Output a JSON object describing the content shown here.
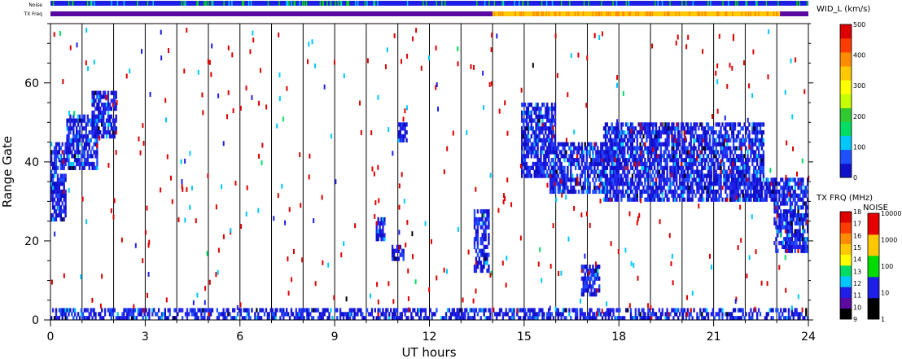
{
  "chart_data": {
    "type": "heatmap",
    "title": "",
    "xlabel": "UT hours",
    "ylabel": "Range Gate",
    "xlim": [
      0,
      24
    ],
    "ylim": [
      0,
      75
    ],
    "x_ticks": [
      "0",
      "3",
      "6",
      "9",
      "12",
      "15",
      "18",
      "21",
      "24"
    ],
    "y_ticks": [
      "0",
      "20",
      "40",
      "60"
    ],
    "hour_gridlines": true,
    "top_strips": {
      "noise_label": "Noise",
      "txfreq_label": "TX Freq",
      "txfreq_segments": [
        {
          "start": 0,
          "end": 14,
          "color": "#5a0aa0"
        },
        {
          "start": 14,
          "end": 23.1,
          "color": "#ffc800"
        },
        {
          "start": 23.1,
          "end": 24,
          "color": "#5a0aa0"
        }
      ]
    },
    "echo_regions": [
      {
        "x": [
          0.0,
          0.5
        ],
        "gate": [
          25,
          45
        ],
        "level": "low"
      },
      {
        "x": [
          0.5,
          1.5
        ],
        "gate": [
          38,
          52
        ],
        "level": "low"
      },
      {
        "x": [
          1.3,
          2.1
        ],
        "gate": [
          46,
          58
        ],
        "level": "low"
      },
      {
        "x": [
          10.3,
          10.6
        ],
        "gate": [
          20,
          26
        ],
        "level": "low"
      },
      {
        "x": [
          10.8,
          11.2
        ],
        "gate": [
          15,
          19
        ],
        "level": "low"
      },
      {
        "x": [
          11.0,
          11.3
        ],
        "gate": [
          45,
          50
        ],
        "level": "low"
      },
      {
        "x": [
          13.4,
          13.9
        ],
        "gate": [
          12,
          28
        ],
        "level": "low"
      },
      {
        "x": [
          14.9,
          16.0
        ],
        "gate": [
          36,
          55
        ],
        "level": "low"
      },
      {
        "x": [
          15.8,
          18.0
        ],
        "gate": [
          32,
          45
        ],
        "level": "low"
      },
      {
        "x": [
          17.5,
          22.6
        ],
        "gate": [
          30,
          50
        ],
        "level": "low"
      },
      {
        "x": [
          21.5,
          23.0
        ],
        "gate": [
          30,
          36
        ],
        "level": "low"
      },
      {
        "x": [
          22.9,
          24.0
        ],
        "gate": [
          17,
          36
        ],
        "level": "low"
      },
      {
        "x": [
          16.8,
          17.4
        ],
        "gate": [
          6,
          14
        ],
        "level": "low"
      },
      {
        "x": [
          0.0,
          24.0
        ],
        "gate": [
          0,
          3
        ],
        "level": "low"
      }
    ],
    "colorbars": [
      {
        "title": "WID_L (km/s)",
        "ticks": [
          "0",
          "100",
          "200",
          "300",
          "400",
          "500"
        ],
        "range": [
          0,
          500
        ],
        "colors": [
          "#1010c8",
          "#1e50ff",
          "#00c8ff",
          "#00dc64",
          "#32c832",
          "#c8ff00",
          "#ffff00",
          "#ffc800",
          "#ff8c00",
          "#ff3c00",
          "#dc0000"
        ]
      },
      {
        "title": "TX FRQ (MHz)",
        "ticks": [
          "9",
          "10",
          "11",
          "12",
          "13",
          "14",
          "15",
          "16",
          "17",
          "18"
        ],
        "range": [
          9,
          18
        ],
        "colors": [
          "#000000",
          "#5a0aa0",
          "#1e1ee6",
          "#00c8ff",
          "#00dc64",
          "#ffff00",
          "#ffc800",
          "#ff8c00",
          "#ff3c00",
          "#dc0000"
        ]
      },
      {
        "title": "NOISE",
        "ticks": [
          "1",
          "10",
          "100",
          "1000",
          "10000"
        ],
        "range": [
          1,
          10000
        ],
        "colors": [
          "#000000",
          "#1e1ee6",
          "#00dc00",
          "#ffc800",
          "#e60000"
        ]
      }
    ]
  }
}
